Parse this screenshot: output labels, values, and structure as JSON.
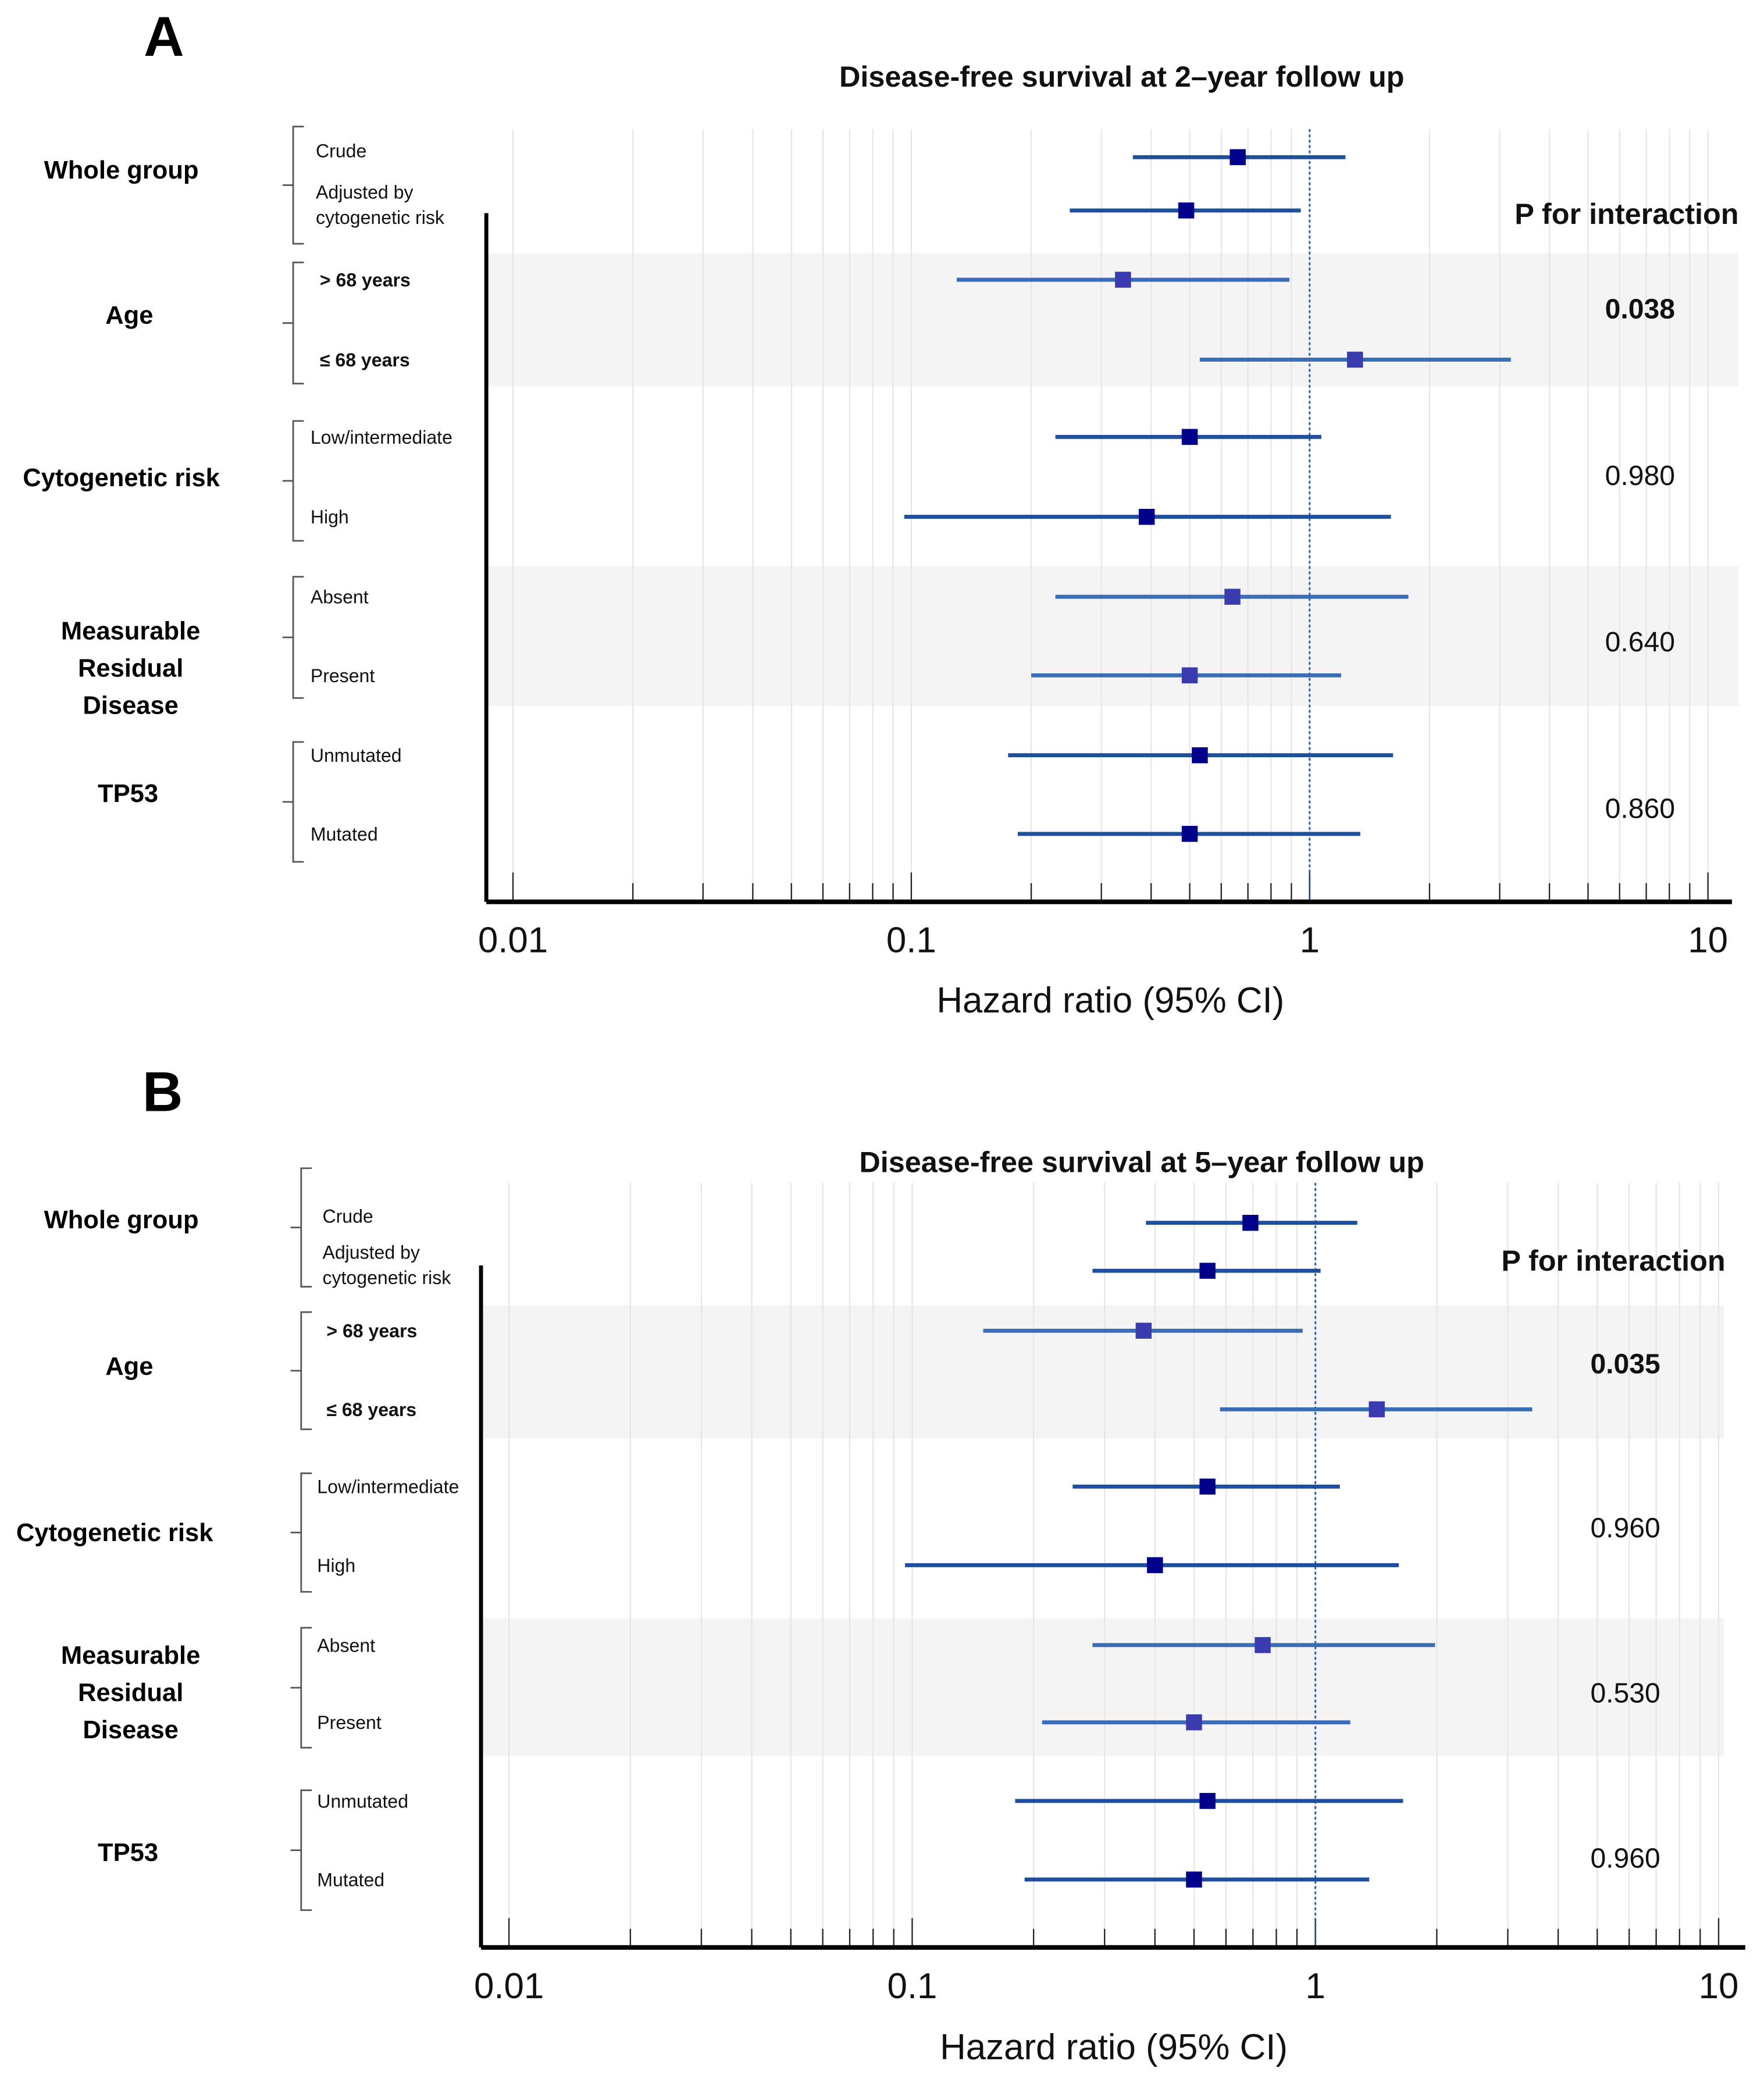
{
  "chart_data": [
    {
      "panel": "A",
      "type": "forest",
      "title": "Disease-free survival at 2–year follow up",
      "xlabel": "Hazard ratio (95% CI)",
      "xscale": "log",
      "xlim": [
        0.01,
        10
      ],
      "xticks": [
        "0.01",
        "0.1",
        "1",
        "10"
      ],
      "reference_line": 1,
      "p_header": "P for interaction",
      "groups": [
        {
          "label": [
            "Whole group"
          ],
          "p": "",
          "shaded": false,
          "rows": [
            {
              "label": [
                "Crude"
              ],
              "hr": 0.66,
              "lo": 0.36,
              "hi": 1.23
            },
            {
              "label": [
                "Adjusted by",
                "cytogenetic risk"
              ],
              "hr": 0.49,
              "lo": 0.25,
              "hi": 0.95
            }
          ]
        },
        {
          "label": [
            "Age"
          ],
          "p": "0.038",
          "p_bold": true,
          "shaded": true,
          "rows": [
            {
              "label": [
                "> 68 years"
              ],
              "bold": true,
              "hr": 0.34,
              "lo": 0.13,
              "hi": 0.89
            },
            {
              "label": [
                "≤ 68 years"
              ],
              "bold": true,
              "hr": 1.3,
              "lo": 0.53,
              "hi": 3.2
            }
          ]
        },
        {
          "label": [
            "Cytogenetic risk"
          ],
          "p": "0.980",
          "shaded": false,
          "rows": [
            {
              "label": [
                "Low/intermediate"
              ],
              "hr": 0.5,
              "lo": 0.23,
              "hi": 1.07
            },
            {
              "label": [
                "High"
              ],
              "hr": 0.39,
              "lo": 0.096,
              "hi": 1.6
            }
          ]
        },
        {
          "label": [
            "Measurable",
            "Residual",
            "Disease"
          ],
          "p": "0.640",
          "shaded": true,
          "rows": [
            {
              "label": [
                "Absent"
              ],
              "hr": 0.64,
              "lo": 0.23,
              "hi": 1.77
            },
            {
              "label": [
                "Present"
              ],
              "hr": 0.5,
              "lo": 0.2,
              "hi": 1.2
            }
          ]
        },
        {
          "label": [
            "TP53"
          ],
          "p": "0.860",
          "shaded": false,
          "rows": [
            {
              "label": [
                "Unmutated"
              ],
              "hr": 0.53,
              "lo": 0.175,
              "hi": 1.62
            },
            {
              "label": [
                "Mutated"
              ],
              "hr": 0.5,
              "lo": 0.185,
              "hi": 1.34
            }
          ]
        }
      ]
    },
    {
      "panel": "B",
      "type": "forest",
      "title": "Disease-free survival at 5–year follow up",
      "xlabel": "Hazard ratio (95% CI)",
      "xscale": "log",
      "xlim": [
        0.01,
        10
      ],
      "xticks": [
        "0.01",
        "0.1",
        "1",
        "10"
      ],
      "reference_line": 1,
      "p_header": "P for interaction",
      "groups": [
        {
          "label": [
            "Whole group"
          ],
          "p": "",
          "shaded": false,
          "rows": [
            {
              "label": [
                "Crude"
              ],
              "hr": 0.69,
              "lo": 0.38,
              "hi": 1.27
            },
            {
              "label": [
                "Adjusted by",
                "cytogenetic risk"
              ],
              "hr": 0.54,
              "lo": 0.28,
              "hi": 1.03
            }
          ]
        },
        {
          "label": [
            "Age"
          ],
          "p": "0.035",
          "p_bold": true,
          "shaded": true,
          "rows": [
            {
              "label": [
                "> 68 years"
              ],
              "bold": true,
              "hr": 0.375,
              "lo": 0.15,
              "hi": 0.93
            },
            {
              "label": [
                "≤ 68 years"
              ],
              "bold": true,
              "hr": 1.42,
              "lo": 0.58,
              "hi": 3.45
            }
          ]
        },
        {
          "label": [
            "Cytogenetic risk"
          ],
          "p": "0.960",
          "shaded": false,
          "rows": [
            {
              "label": [
                "Low/intermediate"
              ],
              "hr": 0.54,
              "lo": 0.25,
              "hi": 1.15
            },
            {
              "label": [
                "High"
              ],
              "hr": 0.4,
              "lo": 0.096,
              "hi": 1.61
            }
          ]
        },
        {
          "label": [
            "Measurable",
            "Residual",
            "Disease"
          ],
          "p": "0.530",
          "shaded": true,
          "rows": [
            {
              "label": [
                "Absent"
              ],
              "hr": 0.74,
              "lo": 0.28,
              "hi": 1.98
            },
            {
              "label": [
                "Present"
              ],
              "hr": 0.5,
              "lo": 0.21,
              "hi": 1.22
            }
          ]
        },
        {
          "label": [
            "TP53"
          ],
          "p": "0.960",
          "shaded": false,
          "rows": [
            {
              "label": [
                "Unmutated"
              ],
              "hr": 0.54,
              "lo": 0.18,
              "hi": 1.65
            },
            {
              "label": [
                "Mutated"
              ],
              "hr": 0.5,
              "lo": 0.19,
              "hi": 1.36
            }
          ]
        }
      ]
    }
  ],
  "colors": {
    "square": "#00008b",
    "line": "#1f4e9c",
    "square_shaded": "#3b3bb0",
    "line_shaded": "#3a6db5",
    "band": "#f4f4f4",
    "reference_line": "#2a5db0"
  }
}
